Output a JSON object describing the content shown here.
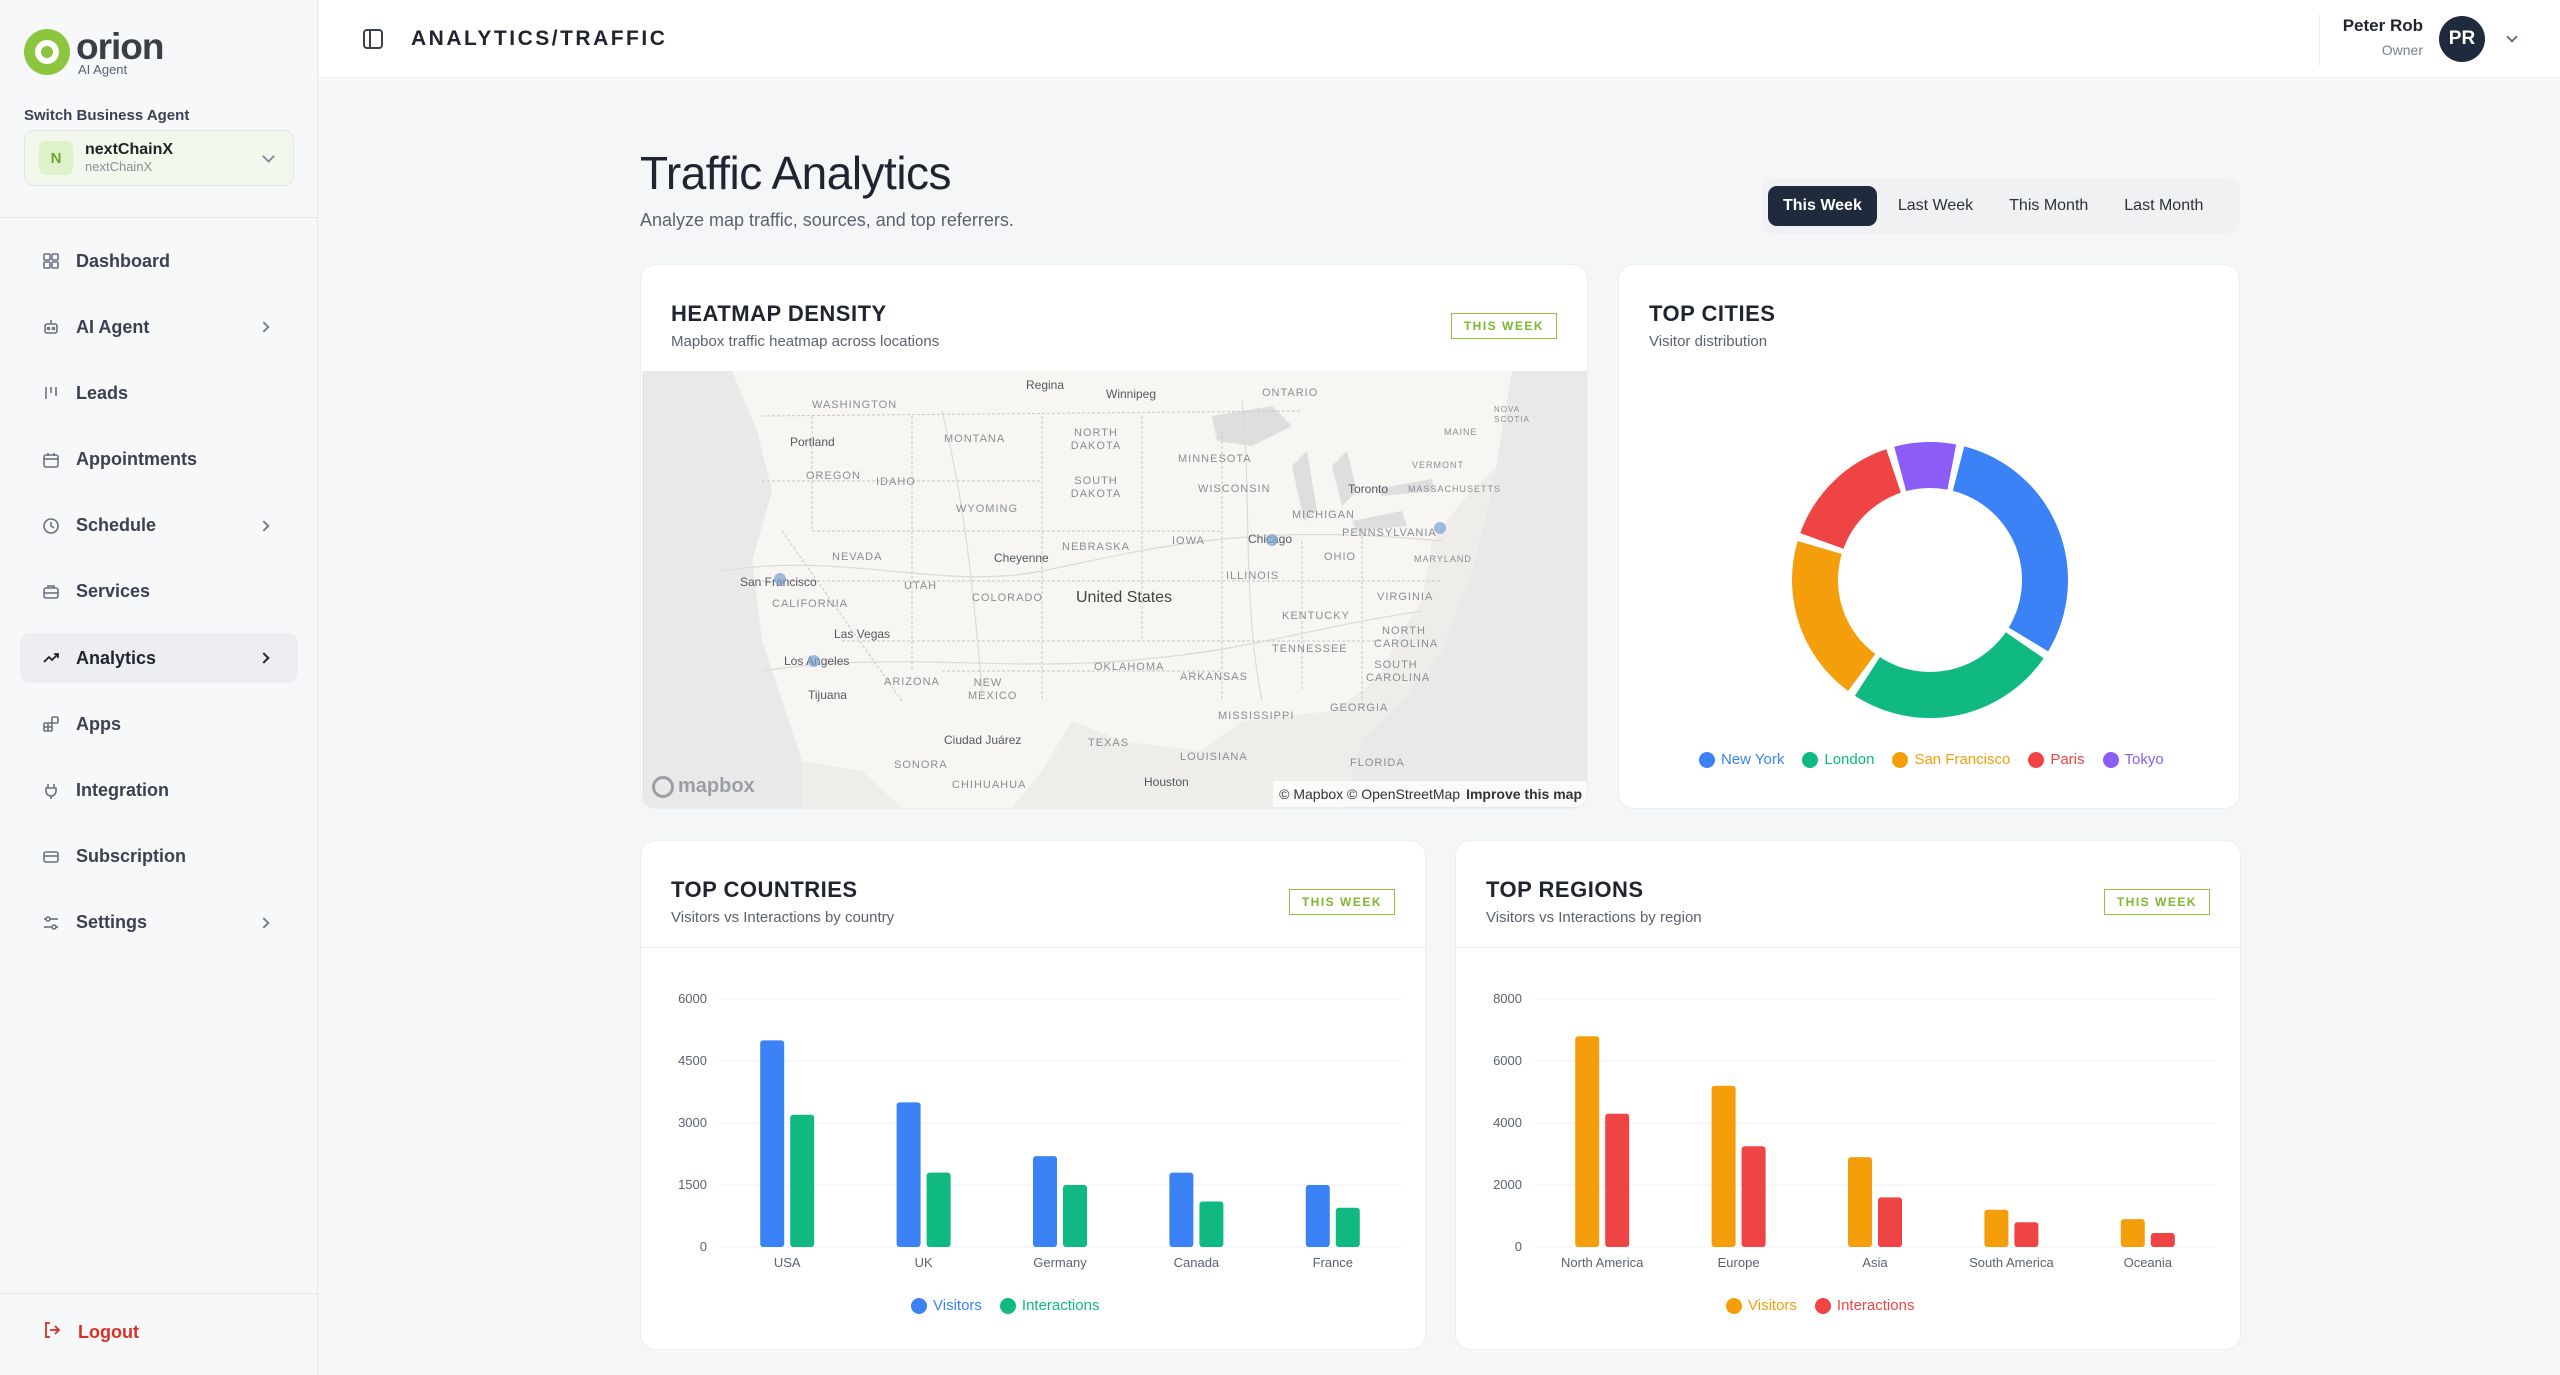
{
  "brand": {
    "name": "orion",
    "sub": "AI Agent"
  },
  "agent_switch": {
    "label": "Switch Business Agent",
    "badge": "N",
    "name": "nextChainX",
    "sub": "nextChainX"
  },
  "nav": [
    {
      "label": "Dashboard",
      "icon": "grid-icon",
      "chevron": false,
      "active": false
    },
    {
      "label": "AI Agent",
      "icon": "robot-icon",
      "chevron": true,
      "active": false
    },
    {
      "label": "Leads",
      "icon": "leads-icon",
      "chevron": false,
      "active": false
    },
    {
      "label": "Appointments",
      "icon": "calendar-icon",
      "chevron": false,
      "active": false
    },
    {
      "label": "Schedule",
      "icon": "clock-icon",
      "chevron": true,
      "active": false
    },
    {
      "label": "Services",
      "icon": "briefcase-icon",
      "chevron": false,
      "active": false
    },
    {
      "label": "Analytics",
      "icon": "trend-icon",
      "chevron": true,
      "active": true
    },
    {
      "label": "Apps",
      "icon": "apps-icon",
      "chevron": false,
      "active": false
    },
    {
      "label": "Integration",
      "icon": "plug-icon",
      "chevron": false,
      "active": false
    },
    {
      "label": "Subscription",
      "icon": "card-icon",
      "chevron": false,
      "active": false
    },
    {
      "label": "Settings",
      "icon": "sliders-icon",
      "chevron": true,
      "active": false
    }
  ],
  "logout_label": "Logout",
  "breadcrumb": "ANALYTICS/TRAFFIC",
  "user": {
    "name": "Peter Rob",
    "role": "Owner",
    "initials": "PR"
  },
  "page": {
    "title": "Traffic Analytics",
    "subtitle": "Analyze map traffic, sources, and top referrers."
  },
  "range_tabs": [
    {
      "label": "This Week",
      "active": true
    },
    {
      "label": "Last Week",
      "active": false
    },
    {
      "label": "This Month",
      "active": false
    },
    {
      "label": "Last Month",
      "active": false
    }
  ],
  "heatmap": {
    "title": "HEATMAP DENSITY",
    "subtitle": "Mapbox traffic heatmap across locations",
    "badge": "THIS WEEK",
    "map_labels": {
      "regina": "Regina",
      "winnipeg": "Winnipeg",
      "ontario": "ONTARIO",
      "washington": "WASHINGTON",
      "portland": "Portland",
      "montana": "MONTANA",
      "north_dakota": "NORTH DAKOTA",
      "minnesota": "MINNESOTA",
      "oregon": "OREGON",
      "idaho": "IDAHO",
      "south_dakota": "SOUTH DAKOTA",
      "wisconsin": "WISCONSIN",
      "toronto": "Toronto",
      "wyoming": "WYOMING",
      "michigan": "MICHIGAN",
      "iowa": "IOWA",
      "chicago": "Chicago",
      "nevada": "NEVADA",
      "cheyenne": "Cheyenne",
      "nebraska": "NEBRASKA",
      "pennsylvania": "PENNSYLVANIA",
      "utah": "UTAH",
      "san_francisco": "San Francisco",
      "illinois": "ILLINOIS",
      "ohio": "OHIO",
      "california": "CALIFORNIA",
      "colorado": "COLORADO",
      "united_states": "United States",
      "virginia": "VIRGINIA",
      "las_vegas": "Las Vegas",
      "kentucky": "KENTUCKY",
      "los_angeles": "Los Angeles",
      "oklahoma": "OKLAHOMA",
      "arizona": "ARIZONA",
      "new_mexico": "NEW MEXICO",
      "arkansas": "ARKANSAS",
      "tennessee": "TENNESSEE",
      "north_carolina": "NORTH CAROLINA",
      "south_carolina": "SOUTH CAROLINA",
      "tijuana": "Tijuana",
      "mississippi": "MISSISSIPPI",
      "georgia": "GEORGIA",
      "ciudad_juarez": "Ciudad Juárez",
      "texas": "TEXAS",
      "louisiana": "LOUISIANA",
      "sonora": "SONORA",
      "chihuahua": "CHIHUAHUA",
      "houston": "Houston",
      "florida": "FLORIDA",
      "maine": "MAINE",
      "vermont": "VERMONT",
      "massachusetts": "MASSACHUSETTS",
      "maryland": "MARYLAND",
      "nova_scotia": "NOVA SCOTIA"
    },
    "mapbox_logo": "mapbox",
    "attribution": "© Mapbox © OpenStreetMap",
    "improve_link": "Improve this map"
  },
  "top_cities": {
    "title": "TOP CITIES",
    "subtitle": "Visitor distribution",
    "chart_data": {
      "type": "pie",
      "labels": [
        "New York",
        "London",
        "San Francisco",
        "Paris",
        "Tokyo"
      ],
      "values": [
        30,
        25,
        20,
        15,
        8
      ],
      "colors": [
        "#3b82f6",
        "#10b981",
        "#f59e0b",
        "#ef4444",
        "#8b5cf6"
      ],
      "donut": true,
      "legend": "bottom"
    }
  },
  "top_countries": {
    "title": "TOP COUNTRIES",
    "subtitle": "Visitors vs Interactions by country",
    "badge": "THIS WEEK",
    "chart_data": {
      "type": "bar",
      "categories": [
        "USA",
        "UK",
        "Germany",
        "Canada",
        "France"
      ],
      "series": [
        {
          "name": "Visitors",
          "values": [
            5000,
            3500,
            2200,
            1800,
            1500
          ],
          "color": "#3b82f6"
        },
        {
          "name": "Interactions",
          "values": [
            3200,
            1800,
            1500,
            1100,
            950
          ],
          "color": "#10b981"
        }
      ],
      "yticks": [
        0,
        1500,
        3000,
        4500,
        6000
      ],
      "ylim": [
        0,
        6000
      ],
      "legend": "bottom"
    }
  },
  "top_regions": {
    "title": "TOP REGIONS",
    "subtitle": "Visitors vs Interactions by region",
    "badge": "THIS WEEK",
    "chart_data": {
      "type": "bar",
      "categories": [
        "North America",
        "Europe",
        "Asia",
        "South America",
        "Oceania"
      ],
      "series": [
        {
          "name": "Visitors",
          "values": [
            6800,
            5200,
            2900,
            1200,
            900
          ],
          "color": "#f59e0b"
        },
        {
          "name": "Interactions",
          "values": [
            4300,
            3250,
            1600,
            800,
            450
          ],
          "color": "#ef4444"
        }
      ],
      "yticks": [
        0,
        2000,
        4000,
        6000,
        8000
      ],
      "ylim": [
        0,
        8000
      ],
      "legend": "bottom"
    }
  }
}
